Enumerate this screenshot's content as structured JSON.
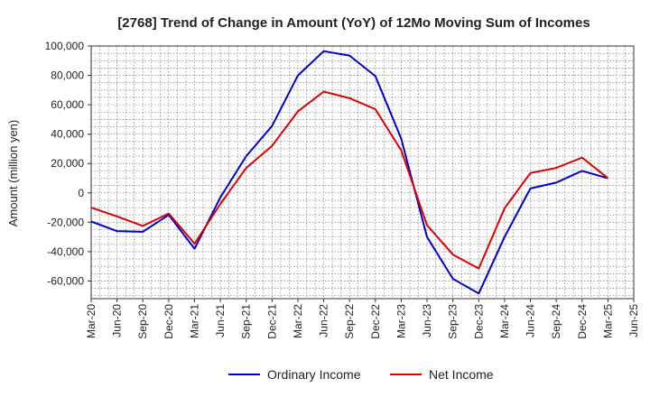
{
  "chart_data": {
    "type": "line",
    "title": "[2768]  Trend of Change in Amount (YoY) of 12Mo Moving Sum of Incomes",
    "xlabel": "",
    "ylabel": "Amount (million yen)",
    "categories": [
      "Mar-20",
      "Jun-20",
      "Sep-20",
      "Dec-20",
      "Mar-21",
      "Jun-21",
      "Sep-21",
      "Dec-21",
      "Mar-22",
      "Jun-22",
      "Sep-22",
      "Dec-22",
      "Mar-23",
      "Jun-23",
      "Sep-23",
      "Dec-23",
      "Mar-24",
      "Jun-24",
      "Sep-24",
      "Dec-24",
      "Mar-25",
      "Jun-25"
    ],
    "ylim": [
      -72000,
      100000
    ],
    "yticks": [
      -60000,
      -40000,
      -20000,
      0,
      20000,
      40000,
      60000,
      80000,
      100000
    ],
    "ytick_labels": [
      "-60,000",
      "-40,000",
      "-20,000",
      "0",
      "20,000",
      "40,000",
      "60,000",
      "80,000",
      "100,000"
    ],
    "grid": true,
    "legend_position": "bottom",
    "series": [
      {
        "name": "Ordinary Income",
        "color": "#0000cc",
        "values": [
          -19500,
          -26000,
          -26500,
          -15000,
          -38000,
          -3000,
          25000,
          45500,
          80000,
          96500,
          93500,
          79500,
          37000,
          -30000,
          -58500,
          -68500,
          -30000,
          3000,
          7000,
          15000,
          10000,
          null
        ]
      },
      {
        "name": "Net Income",
        "color": "#dd0000",
        "values": [
          -10000,
          -16000,
          -22500,
          -14000,
          -34500,
          -7500,
          17000,
          32000,
          55500,
          69000,
          64500,
          57000,
          29000,
          -22000,
          -42000,
          -51500,
          -10500,
          13500,
          17000,
          24000,
          10000,
          null
        ]
      }
    ]
  }
}
